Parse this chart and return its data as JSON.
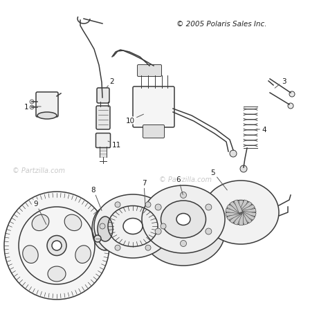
{
  "title": "© 2005 Polaris Sales Inc.",
  "watermark1": "© Partzilla.com",
  "watermark2": "© Partzilla.com",
  "bg_color": "#ffffff",
  "line_color": "#3a3a3a",
  "label_color": "#1a1a1a",
  "figsize": [
    4.74,
    4.81
  ],
  "dpi": 100
}
